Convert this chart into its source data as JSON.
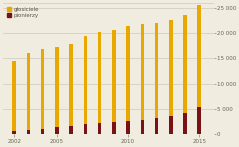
{
  "years": [
    2002,
    2003,
    2004,
    2005,
    2006,
    2007,
    2008,
    2009,
    2010,
    2011,
    2012,
    2013,
    2014,
    2015
  ],
  "glosiciele": [
    14500,
    16000,
    16800,
    17200,
    17800,
    19500,
    20200,
    20600,
    21500,
    21800,
    22000,
    22500,
    23500,
    25500
  ],
  "pionierzy": [
    700,
    900,
    1100,
    1400,
    1600,
    2000,
    2200,
    2400,
    2600,
    2800,
    3200,
    3600,
    4200,
    5500
  ],
  "bar_color_glosiciele": "#e8a800",
  "bar_color_pionierzy": "#7a1215",
  "background_color": "#f0ece0",
  "ylim": [
    0,
    26000
  ],
  "yticks": [
    0,
    5000,
    10000,
    15000,
    20000,
    25000
  ],
  "ytick_labels": [
    "0",
    "5 000",
    "10 000",
    "15 000",
    "20 000",
    "25 000"
  ],
  "xtick_positions": [
    2002,
    2005,
    2010,
    2015
  ],
  "xtick_labels": [
    "2002",
    "2005",
    "2010",
    "2015"
  ],
  "legend_glosiciele": "głosiciele",
  "legend_pionierzy": "pionierzy",
  "grid_color": "#c8c0b0",
  "bar_width": 0.25
}
